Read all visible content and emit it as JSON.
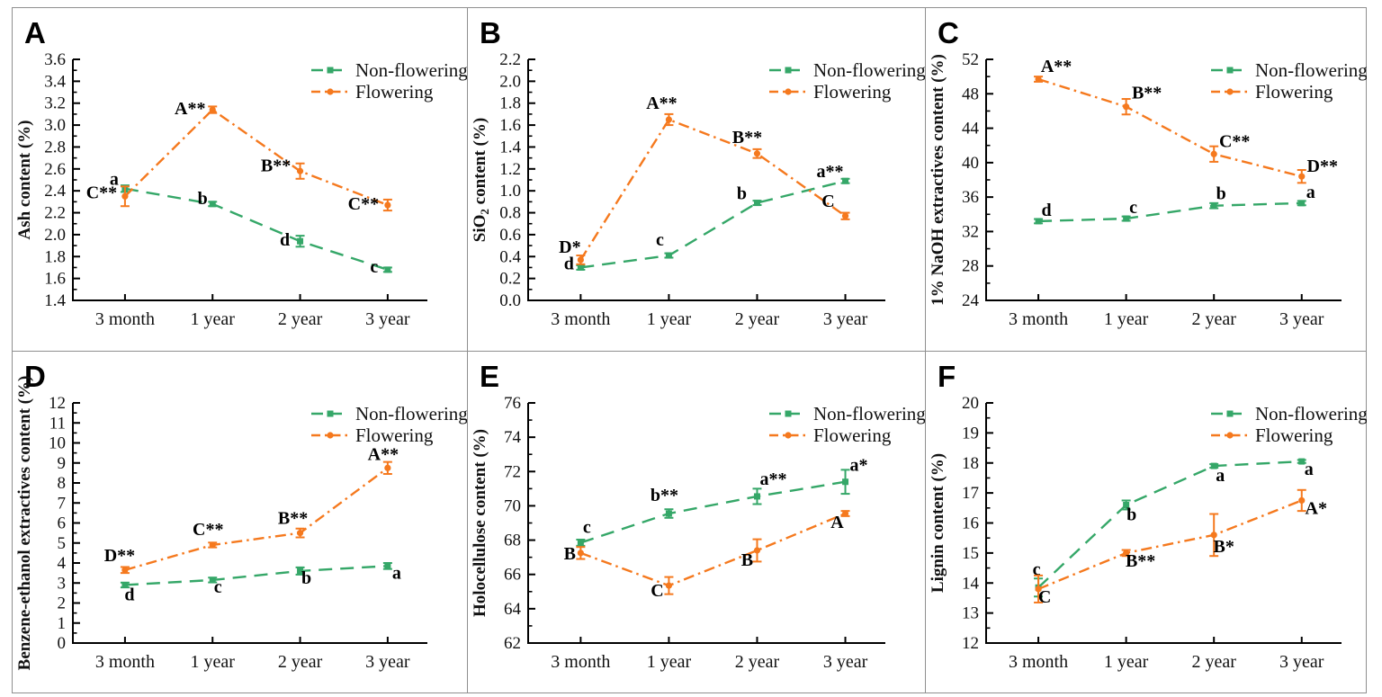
{
  "figure": {
    "colors": {
      "non_flowering": "#35A768",
      "flowering": "#F5791E",
      "axis": "#000000",
      "text": "#111111",
      "divider": "#8f8f8f",
      "background": "#ffffff"
    },
    "legend_labels": [
      "Non-flowering",
      "Flowering"
    ],
    "categories": [
      "3 month",
      "1 year",
      "2 year",
      "3 year"
    ]
  },
  "chart_data": [
    {
      "panel_label": "A",
      "type": "line",
      "ylabel": "Ash content (%)",
      "ylim": [
        1.4,
        3.6
      ],
      "ytick_step": 0.2,
      "ytick_labels": [
        "1.4",
        "1.6",
        "1.8",
        "2.0",
        "2.2",
        "2.4",
        "2.6",
        "2.8",
        "3.0",
        "3.2",
        "3.4",
        "3.6"
      ],
      "categories": [
        "3 month",
        "1 year",
        "2 year",
        "3 year"
      ],
      "legend_position": "top-right",
      "grid": false,
      "series": [
        {
          "name": "Non-flowering",
          "key": "non_flowering",
          "marker": "square",
          "line_style": "dashed",
          "values": [
            2.42,
            2.28,
            1.94,
            1.68
          ],
          "errors": [
            0.03,
            0.02,
            0.05,
            0.02
          ],
          "point_labels": [
            "a",
            "b",
            "d",
            "c"
          ],
          "label_offsets": [
            [
              -12,
              -4
            ],
            [
              -11,
              0
            ],
            [
              -17,
              5
            ],
            [
              -15,
              3
            ]
          ]
        },
        {
          "name": "Flowering",
          "key": "flowering",
          "marker": "circle",
          "line_style": "dash-dot",
          "values": [
            2.35,
            3.14,
            2.58,
            2.27
          ],
          "errors": [
            0.09,
            0.03,
            0.07,
            0.05
          ],
          "point_labels": [
            "C**",
            "A**",
            "B**",
            "C**"
          ],
          "label_offsets": [
            [
              -26,
              2
            ],
            [
              -25,
              5
            ],
            [
              -27,
              0
            ],
            [
              -27,
              5
            ]
          ]
        }
      ]
    },
    {
      "panel_label": "B",
      "type": "line",
      "ylabel": "SiO2 content (%)",
      "ylabel_parts": [
        {
          "t": "SiO"
        },
        {
          "t": "2",
          "sub": true
        },
        {
          "t": " content (%)"
        }
      ],
      "ylim": [
        0.0,
        2.2
      ],
      "ytick_step": 0.2,
      "ytick_labels": [
        "0.0",
        "0.2",
        "0.4",
        "0.6",
        "0.8",
        "1.0",
        "1.2",
        "1.4",
        "1.6",
        "1.8",
        "2.0",
        "2.2"
      ],
      "categories": [
        "3 month",
        "1 year",
        "2 year",
        "3 year"
      ],
      "legend_position": "top-right",
      "grid": false,
      "series": [
        {
          "name": "Non-flowering",
          "key": "non_flowering",
          "marker": "square",
          "line_style": "dashed",
          "values": [
            0.3,
            0.41,
            0.89,
            1.09
          ],
          "errors": [
            0.02,
            0.02,
            0.02,
            0.02
          ],
          "point_labels": [
            "d",
            "c",
            "b",
            "a**"
          ],
          "label_offsets": [
            [
              -13,
              2
            ],
            [
              -10,
              -11
            ],
            [
              -17,
              -4
            ],
            [
              -17,
              -4
            ]
          ]
        },
        {
          "name": "Flowering",
          "key": "flowering",
          "marker": "circle",
          "line_style": "dash-dot",
          "values": [
            0.37,
            1.65,
            1.34,
            0.77
          ],
          "errors": [
            0.04,
            0.05,
            0.04,
            0.03
          ],
          "point_labels": [
            "D*",
            "A**",
            "B**",
            "C"
          ],
          "label_offsets": [
            [
              -12,
              -8
            ],
            [
              -8,
              -12
            ],
            [
              -11,
              -12
            ],
            [
              -19,
              -10
            ]
          ]
        }
      ]
    },
    {
      "panel_label": "C",
      "type": "line",
      "ylabel": "1% NaOH extractives content (%)",
      "ylim": [
        24,
        52
      ],
      "ytick_step": 4,
      "ytick_labels": [
        "24",
        "28",
        "32",
        "36",
        "40",
        "44",
        "48",
        "52"
      ],
      "categories": [
        "3 month",
        "1 year",
        "2 year",
        "3 year"
      ],
      "legend_position": "top-right",
      "grid": false,
      "series": [
        {
          "name": "Non-flowering",
          "key": "non_flowering",
          "marker": "square",
          "line_style": "dashed",
          "values": [
            33.2,
            33.5,
            35.0,
            35.3
          ],
          "errors": [
            0.25,
            0.25,
            0.3,
            0.25
          ],
          "point_labels": [
            "d",
            "c",
            "b",
            "a"
          ],
          "label_offsets": [
            [
              9,
              -6
            ],
            [
              8,
              -6
            ],
            [
              8,
              -7
            ],
            [
              10,
              -6
            ]
          ]
        },
        {
          "name": "Flowering",
          "key": "flowering",
          "marker": "circle",
          "line_style": "dash-dot",
          "values": [
            49.7,
            46.5,
            41.0,
            38.4
          ],
          "errors": [
            0.3,
            0.9,
            0.9,
            0.75
          ],
          "point_labels": [
            "A**",
            "B**",
            "C**",
            "D**"
          ],
          "label_offsets": [
            [
              20,
              -8
            ],
            [
              23,
              -9
            ],
            [
              23,
              -8
            ],
            [
              23,
              -5
            ]
          ]
        }
      ]
    },
    {
      "panel_label": "D",
      "type": "line",
      "ylabel": "Benzene-ethanol extractives content (%)",
      "ylim": [
        0,
        12
      ],
      "ytick_step": 1,
      "ytick_labels": [
        "0",
        "1",
        "2",
        "3",
        "4",
        "5",
        "6",
        "7",
        "8",
        "9",
        "10",
        "11",
        "12"
      ],
      "categories": [
        "3 month",
        "1 year",
        "2 year",
        "3 year"
      ],
      "legend_position": "top-right",
      "grid": false,
      "series": [
        {
          "name": "Non-flowering",
          "key": "non_flowering",
          "marker": "square",
          "line_style": "dashed",
          "values": [
            2.9,
            3.15,
            3.6,
            3.85
          ],
          "errors": [
            0.12,
            0.12,
            0.18,
            0.15
          ],
          "point_labels": [
            "d",
            "c",
            "b",
            "a"
          ],
          "label_offsets": [
            [
              5,
              17
            ],
            [
              6,
              14
            ],
            [
              7,
              14
            ],
            [
              10,
              14
            ]
          ]
        },
        {
          "name": "Flowering",
          "key": "flowering",
          "marker": "circle",
          "line_style": "dash-dot",
          "values": [
            3.65,
            4.9,
            5.5,
            8.75
          ],
          "errors": [
            0.15,
            0.12,
            0.22,
            0.3
          ],
          "point_labels": [
            "D**",
            "C**",
            "B**",
            "A**"
          ],
          "label_offsets": [
            [
              -6,
              -10
            ],
            [
              -5,
              -11
            ],
            [
              -8,
              -10
            ],
            [
              -5,
              -9
            ]
          ]
        }
      ]
    },
    {
      "panel_label": "E",
      "type": "line",
      "ylabel": "Holocellulose content (%)",
      "ylim": [
        62,
        76
      ],
      "ytick_step": 2,
      "ytick_labels": [
        "62",
        "64",
        "66",
        "68",
        "70",
        "72",
        "74",
        "76"
      ],
      "categories": [
        "3 month",
        "1 year",
        "2 year",
        "3 year"
      ],
      "legend_position": "top-right",
      "grid": false,
      "series": [
        {
          "name": "Non-flowering",
          "key": "non_flowering",
          "marker": "square",
          "line_style": "dashed",
          "values": [
            67.85,
            69.55,
            70.55,
            71.4
          ],
          "errors": [
            0.18,
            0.25,
            0.45,
            0.7
          ],
          "point_labels": [
            "c",
            "b**",
            "a**",
            "a*"
          ],
          "label_offsets": [
            [
              7,
              -11
            ],
            [
              -5,
              -14
            ],
            [
              18,
              -13
            ],
            [
              15,
              -12
            ]
          ]
        },
        {
          "name": "Flowering",
          "key": "flowering",
          "marker": "circle",
          "line_style": "dash-dot",
          "values": [
            67.25,
            65.35,
            67.4,
            69.55
          ],
          "errors": [
            0.35,
            0.5,
            0.65,
            0.15
          ],
          "point_labels": [
            "B",
            "C",
            "B",
            "A"
          ],
          "label_offsets": [
            [
              -12,
              7
            ],
            [
              -13,
              12
            ],
            [
              -11,
              17
            ],
            [
              -9,
              16
            ]
          ]
        }
      ]
    },
    {
      "panel_label": "F",
      "type": "line",
      "ylabel": "Lignin content (%)",
      "ylim": [
        12,
        20
      ],
      "ytick_step": 1,
      "ytick_labels": [
        "12",
        "13",
        "14",
        "15",
        "16",
        "17",
        "18",
        "19",
        "20"
      ],
      "categories": [
        "3 month",
        "1 year",
        "2 year",
        "3 year"
      ],
      "legend_position": "top-right",
      "grid": false,
      "series": [
        {
          "name": "Non-flowering",
          "key": "non_flowering",
          "marker": "square",
          "line_style": "dashed",
          "values": [
            13.85,
            16.6,
            17.9,
            18.05
          ],
          "errors": [
            0.3,
            0.15,
            0.06,
            0.05
          ],
          "point_labels": [
            "c",
            "b",
            "a",
            "a"
          ],
          "label_offsets": [
            [
              -2,
              -14
            ],
            [
              6,
              17
            ],
            [
              7,
              17
            ],
            [
              8,
              15
            ]
          ]
        },
        {
          "name": "Flowering",
          "key": "flowering",
          "marker": "circle",
          "line_style": "dash-dot",
          "values": [
            13.8,
            15.0,
            15.6,
            16.75
          ],
          "errors": [
            0.45,
            0.1,
            0.7,
            0.35
          ],
          "point_labels": [
            "C",
            "B**",
            "B*",
            "A*"
          ],
          "label_offsets": [
            [
              7,
              15
            ],
            [
              16,
              15
            ],
            [
              11,
              19
            ],
            [
              16,
              15
            ]
          ]
        }
      ]
    }
  ]
}
